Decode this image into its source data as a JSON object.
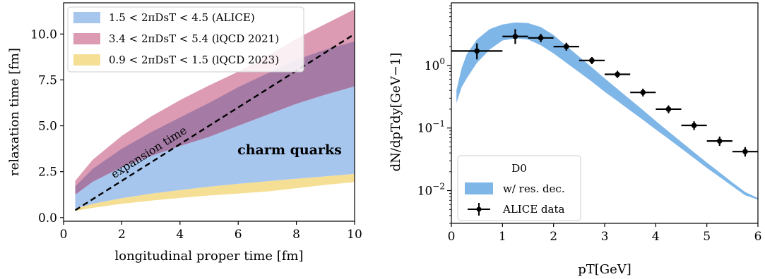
{
  "chart_data": [
    {
      "type": "area",
      "xlabel": "longitudinal proper time [fm]",
      "ylabel": "relaxation time [fm]",
      "xlim": [
        0,
        10
      ],
      "ylim": [
        -0.2,
        11.7
      ],
      "xticks": [
        "0",
        "2",
        "4",
        "6",
        "8",
        "10"
      ],
      "yticks": [
        "0.0",
        "2.5",
        "5.0",
        "7.5",
        "10.0"
      ],
      "grid": false,
      "legend_position": "top-left",
      "x": [
        0.4,
        1,
        2,
        3,
        4,
        5,
        6,
        7,
        8,
        9,
        10
      ],
      "series": [
        {
          "name": "1.5 < 2πDsT < 4.5 (ALICE)",
          "color": "#a7c6ee",
          "lower": [
            0.48,
            0.75,
            1.06,
            1.3,
            1.5,
            1.68,
            1.84,
            1.98,
            2.12,
            2.25,
            2.38
          ],
          "upper": [
            1.25,
            1.95,
            2.75,
            3.35,
            3.9,
            4.4,
            5.0,
            5.6,
            6.2,
            6.7,
            7.15
          ]
        },
        {
          "name": "3.4 < 2πDsT < 5.4 (lQCD 2021)",
          "color": "#dc9bb3",
          "lower": [
            1.25,
            1.95,
            2.75,
            3.35,
            3.9,
            4.4,
            5.0,
            5.6,
            6.2,
            6.7,
            7.15
          ],
          "upper": [
            2.0,
            3.15,
            4.45,
            5.5,
            6.4,
            7.2,
            7.95,
            8.8,
            9.75,
            10.55,
            11.35
          ]
        },
        {
          "name": "0.9 < 2πDsT < 1.5 (lQCD 2023)",
          "color": "#f5df95",
          "lower": [
            0.36,
            0.53,
            0.75,
            0.92,
            1.07,
            1.2,
            1.31,
            1.42,
            1.6,
            1.78,
            1.93
          ],
          "upper": [
            0.48,
            0.75,
            1.06,
            1.3,
            1.5,
            1.68,
            1.84,
            1.98,
            2.12,
            2.25,
            2.38
          ]
        }
      ],
      "overlap": {
        "color": "#a57ba6",
        "lower": [
          1.25,
          1.95,
          2.75,
          3.35,
          3.9,
          4.4,
          5.0,
          5.6,
          6.2,
          6.7,
          7.15
        ],
        "upper": [
          1.7,
          2.65,
          3.75,
          4.65,
          5.45,
          6.25,
          7.1,
          7.85,
          8.6,
          9.15,
          9.6
        ]
      },
      "line": {
        "label": "expansion time",
        "style": "dashed",
        "x": [
          0.4,
          10
        ],
        "y": [
          0.4,
          10
        ]
      },
      "annotation": "charm quarks"
    },
    {
      "type": "scatter",
      "xlabel": "pT[GeV]",
      "ylabel": "dN/dpTdy[GeV−1]",
      "xlim": [
        0,
        6
      ],
      "ylim": [
        0.003,
        10
      ],
      "yscale": "log",
      "xticks": [
        "0",
        "1",
        "2",
        "3",
        "4",
        "5",
        "6"
      ],
      "yticks": [
        {
          "value": 1,
          "base": "10",
          "exp": "0"
        },
        {
          "value": 0.1,
          "base": "10",
          "exp": "−1"
        },
        {
          "value": 0.01,
          "base": "10",
          "exp": "−2"
        }
      ],
      "grid": false,
      "legend_position": "bottom-left",
      "legend_title": "D0",
      "band": {
        "name": "w/ res. dec.",
        "color": "#7eb6e8",
        "x": [
          0.1,
          0.2,
          0.3,
          0.5,
          0.75,
          1.0,
          1.25,
          1.5,
          1.75,
          2.0,
          2.25,
          2.5,
          2.75,
          3.0,
          3.25,
          3.5,
          3.75,
          4.0,
          4.25,
          4.5,
          4.75,
          5.0,
          5.25,
          5.5,
          5.75,
          6.0
        ],
        "lower": [
          0.25,
          0.45,
          0.62,
          1.1,
          1.8,
          2.5,
          2.7,
          2.6,
          2.1,
          1.55,
          1.1,
          0.78,
          0.55,
          0.38,
          0.27,
          0.19,
          0.135,
          0.095,
          0.067,
          0.047,
          0.033,
          0.023,
          0.0165,
          0.0118,
          0.0084,
          0.0072
        ],
        "upper": [
          0.4,
          0.9,
          1.5,
          2.6,
          3.8,
          4.5,
          4.85,
          4.75,
          4.1,
          3.05,
          2.05,
          1.38,
          0.93,
          0.62,
          0.42,
          0.285,
          0.193,
          0.13,
          0.088,
          0.06,
          0.041,
          0.028,
          0.0195,
          0.0135,
          0.0095,
          0.0076
        ]
      },
      "points": {
        "name": "ALICE data",
        "color": "#000000",
        "x": [
          0.5,
          1.25,
          1.75,
          2.25,
          2.75,
          3.25,
          3.75,
          4.25,
          4.75,
          5.25,
          5.75
        ],
        "xerr": [
          0.5,
          0.25,
          0.25,
          0.25,
          0.25,
          0.25,
          0.25,
          0.25,
          0.25,
          0.25,
          0.25
        ],
        "y": [
          1.7,
          2.9,
          2.75,
          2.0,
          1.2,
          0.72,
          0.37,
          0.2,
          0.11,
          0.062,
          0.042
        ],
        "yerr_low": [
          0.45,
          0.7,
          0.4,
          0.28,
          0.15,
          0.09,
          0.05,
          0.028,
          0.017,
          0.01,
          0.007
        ],
        "yerr_high": [
          0.55,
          0.9,
          0.45,
          0.3,
          0.16,
          0.1,
          0.055,
          0.03,
          0.018,
          0.011,
          0.0075
        ]
      }
    }
  ]
}
